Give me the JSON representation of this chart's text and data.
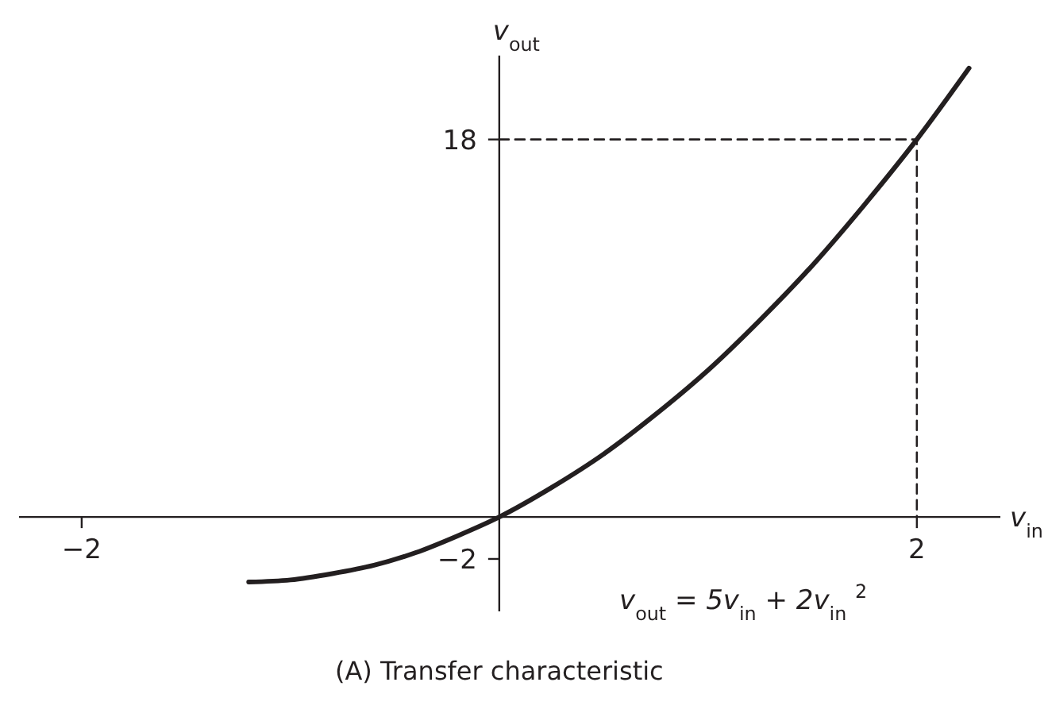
{
  "chart_data": {
    "type": "line",
    "title": "(A) Transfer characteristic",
    "xlabel": "v$_{in}$",
    "ylabel": "v$_{out}$",
    "annotations": [
      "v$_{out}$ = 5v$_{in}$ + 2v$_{in}$$^{2}$"
    ],
    "xlim": [
      -2.3,
      2.4
    ],
    "ylim": [
      -4.5,
      22
    ],
    "xticks": [
      {
        "value": -2,
        "label": "−2"
      },
      2
    ],
    "yticks": [
      {
        "value": -2,
        "label": "−2"
      },
      18
    ],
    "grid": false,
    "marker": "none",
    "series": [
      {
        "color": "#231f20",
        "line_style": "solid",
        "x": [
          -1.2,
          -1,
          -0.8,
          -0.6,
          -0.4,
          -0.2,
          0,
          0.25,
          0.5,
          0.75,
          1,
          1.25,
          1.5,
          1.75,
          2,
          2.25
        ],
        "values": [
          -3.1,
          -3,
          -2.7,
          -2.3,
          -1.7,
          -0.9,
          0,
          1.4,
          3,
          4.9,
          7,
          9.4,
          12,
          14.9,
          18,
          21.4
        ]
      },
      {
        "color": "#231f20",
        "line_style": "dashed",
        "x": [
          0,
          2,
          2
        ],
        "values": [
          18,
          18,
          0
        ]
      }
    ]
  }
}
